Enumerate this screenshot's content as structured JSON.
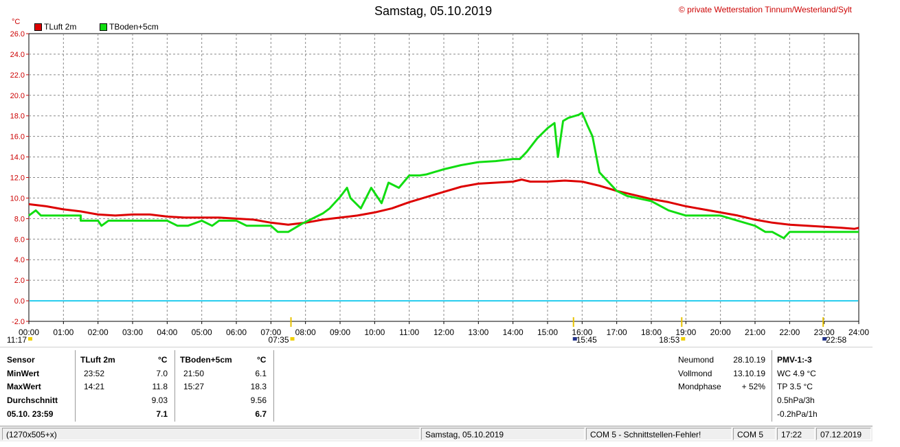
{
  "header": {
    "title": "Samstag, 05.10.2019",
    "credit": "© private Wetterstation Tinnum/Westerland/Sylt",
    "unit": "°C"
  },
  "chart_data": {
    "type": "line",
    "title": "Samstag, 05.10.2019",
    "ylabel": "°C",
    "ylim": [
      -2,
      26
    ],
    "yticks": [
      "26.0",
      "24.0",
      "22.0",
      "20.0",
      "18.0",
      "16.0",
      "14.0",
      "12.0",
      "10.0",
      "8.0",
      "6.0",
      "4.0",
      "2.0",
      "0.0",
      "-2.0"
    ],
    "xlim": [
      0,
      24
    ],
    "xticks": [
      "00:00",
      "01:00",
      "02:00",
      "03:00",
      "04:00",
      "05:00",
      "06:00",
      "07:00",
      "08:00",
      "09:00",
      "10:00",
      "11:00",
      "12:00",
      "13:00",
      "14:00",
      "15:00",
      "16:00",
      "17:00",
      "18:00",
      "19:00",
      "20:00",
      "21:00",
      "22:00",
      "23:00",
      "24:00"
    ],
    "grid": true,
    "legend_position": "top-left",
    "zero_line": 0,
    "series": [
      {
        "name": "TLuft 2m",
        "color": "#dd0000",
        "x": [
          0,
          0.5,
          1,
          1.5,
          2,
          2.5,
          3,
          3.5,
          4,
          4.5,
          5,
          5.5,
          6,
          6.5,
          7,
          7.5,
          8,
          8.5,
          9,
          9.5,
          10,
          10.5,
          11,
          11.5,
          12,
          12.5,
          13,
          13.5,
          14,
          14.25,
          14.5,
          15,
          15.5,
          16,
          16.5,
          17,
          17.5,
          18,
          18.5,
          19,
          19.5,
          20,
          20.5,
          21,
          21.5,
          22,
          22.5,
          23,
          23.5,
          23.87,
          24
        ],
        "values": [
          9.4,
          9.2,
          8.9,
          8.7,
          8.4,
          8.3,
          8.4,
          8.4,
          8.2,
          8.1,
          8.1,
          8.1,
          8.0,
          7.9,
          7.6,
          7.4,
          7.6,
          7.9,
          8.1,
          8.3,
          8.6,
          9.0,
          9.6,
          10.1,
          10.6,
          11.1,
          11.4,
          11.5,
          11.6,
          11.8,
          11.6,
          11.6,
          11.7,
          11.6,
          11.2,
          10.7,
          10.3,
          9.9,
          9.6,
          9.2,
          8.9,
          8.6,
          8.3,
          7.9,
          7.6,
          7.4,
          7.3,
          7.2,
          7.1,
          7.0,
          7.1
        ]
      },
      {
        "name": "TBoden+5cm",
        "color": "#11dd11",
        "x": [
          0,
          0.2,
          0.35,
          1,
          1.5,
          1.5,
          2,
          2.1,
          2.3,
          3,
          4,
          4.3,
          4.6,
          5,
          5.3,
          5.5,
          6,
          6.3,
          6.6,
          7,
          7.2,
          7.5,
          7.9,
          8.2,
          8.5,
          8.7,
          9,
          9.2,
          9.3,
          9.6,
          9.9,
          10.2,
          10.4,
          10.7,
          11,
          11.3,
          11.5,
          12,
          12.5,
          13,
          13.5,
          14,
          14.2,
          14.4,
          14.7,
          15,
          15.2,
          15.3,
          15.45,
          15.6,
          15.9,
          16,
          16.15,
          16.3,
          16.5,
          17,
          17.3,
          18,
          18.5,
          19,
          19.5,
          20,
          20.5,
          21,
          21.3,
          21.5,
          21.83,
          22,
          22.5,
          23,
          23.5,
          24
        ],
        "values": [
          8.3,
          8.8,
          8.3,
          8.3,
          8.3,
          7.8,
          7.8,
          7.3,
          7.8,
          7.8,
          7.8,
          7.3,
          7.3,
          7.8,
          7.3,
          7.8,
          7.8,
          7.3,
          7.3,
          7.3,
          6.7,
          6.7,
          7.5,
          8.0,
          8.5,
          9.0,
          10.1,
          11.0,
          10.0,
          9.0,
          11.0,
          9.5,
          11.5,
          11.0,
          12.2,
          12.2,
          12.3,
          12.8,
          13.2,
          13.5,
          13.6,
          13.8,
          13.8,
          14.5,
          15.8,
          16.8,
          17.3,
          14.0,
          17.5,
          17.8,
          18.1,
          18.3,
          17.1,
          16.0,
          12.5,
          10.7,
          10.2,
          9.7,
          8.8,
          8.3,
          8.3,
          8.3,
          7.8,
          7.3,
          6.7,
          6.7,
          6.1,
          6.7,
          6.7,
          6.7,
          6.7,
          6.7
        ]
      }
    ],
    "markers": [
      {
        "label": "11:17",
        "hour": 0
      },
      {
        "label": "07:35",
        "hour": 7.58
      },
      {
        "label": "15:45",
        "hour": 15.75
      },
      {
        "label": "18:53",
        "hour": 18.88
      },
      {
        "label": "22:58",
        "hour": 22.97
      }
    ]
  },
  "legend": [
    {
      "label": "TLuft 2m",
      "color": "#dd0000"
    },
    {
      "label": "TBoden+5cm",
      "color": "#11dd11"
    }
  ],
  "stats": {
    "sensor_label": "Sensor",
    "min_label": "MinWert",
    "max_label": "MaxWert",
    "avg_label": "Durchschnitt",
    "current_label": "05.10. 23:59",
    "tluft": {
      "name": "TLuft 2m",
      "unit": "°C",
      "min_time": "23:52",
      "min": "7.0",
      "max_time": "14:21",
      "max": "11.8",
      "avg": "9.03",
      "current": "7.1"
    },
    "tboden": {
      "name": "TBoden+5cm",
      "unit": "°C",
      "min_time": "21:50",
      "min": "6.1",
      "max_time": "15:27",
      "max": "18.3",
      "avg": "9.56",
      "current": "6.7"
    }
  },
  "moon": {
    "neumond_label": "Neumond",
    "neumond": "28.10.19",
    "vollmond_label": "Vollmond",
    "vollmond": "13.10.19",
    "phase_label": "Mondphase",
    "phase": "+ 52%"
  },
  "pmv": {
    "title": "PMV-1:-3",
    "wc": "WC 4.9 °C",
    "tp": "TP 3.5 °C",
    "p3h": "0.5hPa/3h",
    "p1h": "-0.2hPa/1h"
  },
  "statusbar": {
    "size": "(1270x505+x)",
    "date": "Samstag, 05.10.2019",
    "error": "COM 5 - Schnittstellen-Fehler!",
    "port": "COM 5",
    "time": "17:22",
    "today": "07.12.2019"
  }
}
